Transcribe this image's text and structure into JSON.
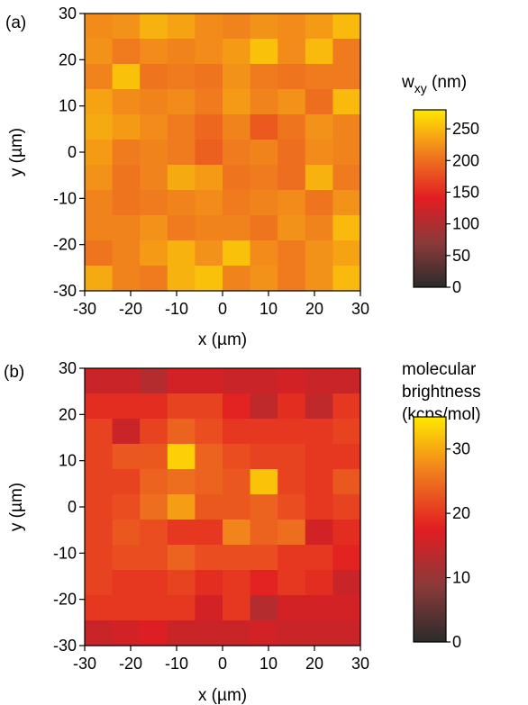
{
  "chart_data": [
    {
      "type": "heatmap",
      "panel_label": "(a)",
      "xlabel": "x (µm)",
      "ylabel": "y (µm)",
      "xlim": [
        -30,
        30
      ],
      "ylim": [
        -30,
        30
      ],
      "x_ticks": [
        "-30",
        "-20",
        "-10",
        "0",
        "10",
        "20",
        "30"
      ],
      "y_ticks": [
        "30",
        "20",
        "10",
        "0",
        "-10",
        "-20",
        "-30"
      ],
      "colorbar": {
        "title": "w",
        "title_sub": "xy",
        "title_suffix": " (nm)",
        "range": [
          0,
          280
        ],
        "ticks": [
          "250",
          "200",
          "150",
          "100",
          "50",
          "0"
        ],
        "tick_values": [
          250,
          200,
          150,
          100,
          50,
          0
        ],
        "colors": [
          "#2b2b2b",
          "#8a3a3a",
          "#e21d22",
          "#f07b1e",
          "#ffe800"
        ]
      },
      "grid_rows_top_to_bottom": [
        [
          220,
          225,
          245,
          235,
          220,
          215,
          225,
          220,
          230,
          250
        ],
        [
          225,
          210,
          220,
          215,
          220,
          230,
          255,
          220,
          250,
          210
        ],
        [
          215,
          255,
          205,
          210,
          205,
          225,
          210,
          205,
          210,
          210
        ],
        [
          235,
          220,
          215,
          220,
          210,
          230,
          215,
          225,
          200,
          250
        ],
        [
          240,
          230,
          220,
          210,
          195,
          215,
          185,
          205,
          225,
          215
        ],
        [
          230,
          210,
          215,
          210,
          190,
          210,
          215,
          200,
          220,
          215
        ],
        [
          225,
          205,
          215,
          240,
          230,
          205,
          210,
          200,
          245,
          210
        ],
        [
          215,
          205,
          210,
          215,
          220,
          210,
          215,
          220,
          205,
          225
        ],
        [
          215,
          215,
          225,
          210,
          215,
          215,
          205,
          225,
          215,
          250
        ],
        [
          205,
          215,
          230,
          245,
          225,
          255,
          220,
          210,
          225,
          235
        ],
        [
          240,
          215,
          210,
          245,
          255,
          215,
          225,
          210,
          225,
          250
        ]
      ]
    },
    {
      "type": "heatmap",
      "panel_label": "(b)",
      "xlabel": "x (µm)",
      "ylabel": "y (µm)",
      "xlim": [
        -30,
        30
      ],
      "ylim": [
        -30,
        30
      ],
      "x_ticks": [
        "-30",
        "-20",
        "-10",
        "0",
        "10",
        "20",
        "30"
      ],
      "y_ticks": [
        "30",
        "20",
        "10",
        "0",
        "-10",
        "-20",
        "-30"
      ],
      "colorbar": {
        "title_lines": [
          "molecular",
          "brightness",
          "(kcps/mol)"
        ],
        "range": [
          0,
          35
        ],
        "ticks": [
          "30",
          "20",
          "10",
          "0"
        ],
        "tick_values": [
          30,
          20,
          10,
          0
        ],
        "colors": [
          "#2b2b2b",
          "#8a3a3a",
          "#e21d22",
          "#f07b1e",
          "#ffe800"
        ]
      },
      "grid_rows_top_to_bottom": [
        [
          15,
          15,
          13,
          16,
          16,
          15,
          15,
          16,
          15,
          15
        ],
        [
          19,
          19,
          19,
          21,
          21,
          18,
          14,
          19,
          14,
          20
        ],
        [
          21,
          15,
          21,
          24,
          22,
          20,
          20,
          20,
          20,
          21
        ],
        [
          21,
          23,
          23,
          33,
          24,
          22,
          21,
          21,
          20,
          20
        ],
        [
          21,
          21,
          24,
          25,
          24,
          23,
          32,
          21,
          20,
          23
        ],
        [
          21,
          22,
          25,
          29,
          23,
          23,
          24,
          22,
          20,
          21
        ],
        [
          21,
          23,
          22,
          20,
          20,
          27,
          24,
          25,
          16,
          19
        ],
        [
          21,
          22,
          22,
          24,
          22,
          22,
          22,
          20,
          20,
          18
        ],
        [
          21,
          20,
          20,
          21,
          19,
          20,
          18,
          20,
          19,
          15
        ],
        [
          20,
          20,
          20,
          20,
          16,
          20,
          13,
          16,
          16,
          16
        ],
        [
          15,
          16,
          17,
          15,
          15,
          15,
          16,
          15,
          15,
          15
        ]
      ]
    }
  ]
}
